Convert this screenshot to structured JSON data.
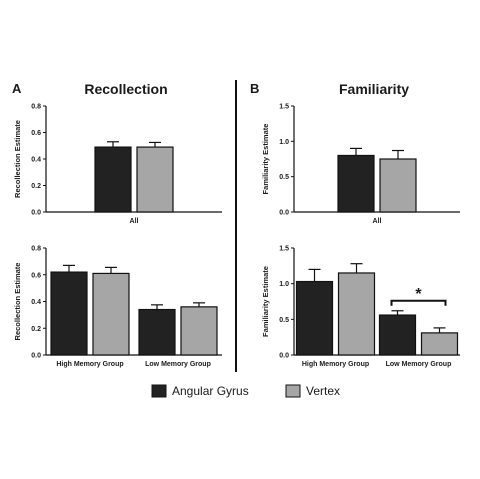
{
  "panels": [
    {
      "letter": "A",
      "title": "Recollection"
    },
    {
      "letter": "B",
      "title": "Familiarity"
    }
  ],
  "legend": [
    {
      "label": "Angular Gyrus",
      "color": "#222222"
    },
    {
      "label": "Vertex",
      "color": "#a6a6a6"
    }
  ],
  "chart_data": [
    {
      "type": "bar",
      "panel": "A",
      "ylabel": "Recollection Estimate",
      "categories": [
        "All"
      ],
      "ylim": [
        0,
        0.8
      ],
      "yticks": [
        "0.0",
        "0.2",
        "0.4",
        "0.6",
        "0.8"
      ],
      "series": [
        {
          "name": "Angular Gyrus",
          "values": [
            0.49
          ],
          "errors": [
            0.04
          ]
        },
        {
          "name": "Vertex",
          "values": [
            0.49
          ],
          "errors": [
            0.035
          ]
        }
      ]
    },
    {
      "type": "bar",
      "panel": "B",
      "ylabel": "Familiarity Estimate",
      "categories": [
        "All"
      ],
      "ylim": [
        0,
        1.5
      ],
      "yticks": [
        "0.0",
        "0.5",
        "1.0",
        "1.5"
      ],
      "series": [
        {
          "name": "Angular Gyrus",
          "values": [
            0.8
          ],
          "errors": [
            0.1
          ]
        },
        {
          "name": "Vertex",
          "values": [
            0.75
          ],
          "errors": [
            0.12
          ]
        }
      ]
    },
    {
      "type": "bar",
      "panel": "A",
      "ylabel": "Recollection Estimate",
      "categories": [
        "High Memory Group",
        "Low Memory Group"
      ],
      "ylim": [
        0,
        0.8
      ],
      "yticks": [
        "0.0",
        "0.2",
        "0.4",
        "0.6",
        "0.8"
      ],
      "series": [
        {
          "name": "Angular Gyrus",
          "values": [
            0.62,
            0.34
          ],
          "errors": [
            0.05,
            0.035
          ]
        },
        {
          "name": "Vertex",
          "values": [
            0.61,
            0.36
          ],
          "errors": [
            0.045,
            0.03
          ]
        }
      ]
    },
    {
      "type": "bar",
      "panel": "B",
      "ylabel": "Familiarity Estimate",
      "categories": [
        "High Memory Group",
        "Low Memory Group"
      ],
      "ylim": [
        0,
        1.5
      ],
      "yticks": [
        "0.0",
        "0.5",
        "1.0",
        "1.5"
      ],
      "series": [
        {
          "name": "Angular Gyrus",
          "values": [
            1.03,
            0.56
          ],
          "errors": [
            0.17,
            0.06
          ]
        },
        {
          "name": "Vertex",
          "values": [
            1.15,
            0.31
          ],
          "errors": [
            0.13,
            0.07
          ]
        }
      ],
      "annotations": [
        {
          "text": "*",
          "category": "Low Memory Group"
        }
      ]
    }
  ]
}
